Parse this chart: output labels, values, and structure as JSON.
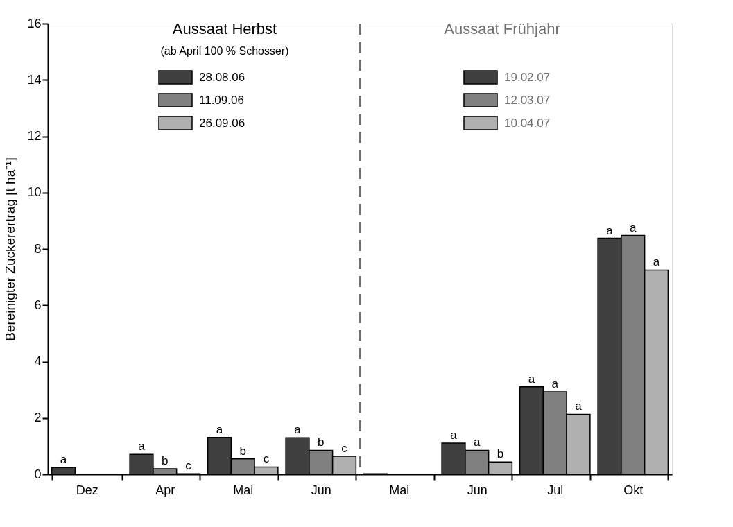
{
  "chart_data": {
    "type": "bar",
    "ylabel": "Bereinigter Zuckerertrag [t ha⁻¹]",
    "categories": [
      "Dez",
      "Apr",
      "Mai",
      "Jun",
      "Mai",
      "Jun",
      "Jul",
      "Okt"
    ],
    "series": [
      {
        "name": "28.08.06",
        "color": "#404040",
        "values": [
          0.24,
          0.71,
          1.31,
          1.3,
          null,
          null,
          null,
          null
        ],
        "value_labels": [
          "a",
          "a",
          "a",
          "a",
          null,
          null,
          null,
          null
        ]
      },
      {
        "name": "11.09.06",
        "color": "#808080",
        "values": [
          null,
          0.2,
          0.55,
          0.85,
          null,
          null,
          null,
          null
        ],
        "value_labels": [
          null,
          "b",
          "b",
          "b",
          null,
          null,
          null,
          null
        ]
      },
      {
        "name": "26.09.06",
        "color": "#b0b0b0",
        "values": [
          null,
          0.02,
          0.26,
          0.64,
          null,
          null,
          null,
          null
        ],
        "value_labels": [
          null,
          "c",
          "c",
          "c",
          null,
          null,
          null,
          null
        ]
      },
      {
        "name": "19.02.07",
        "color": "#404040",
        "values": [
          null,
          null,
          null,
          null,
          0.02,
          1.11,
          3.11,
          8.38
        ],
        "value_labels": [
          null,
          null,
          null,
          null,
          null,
          "a",
          "a",
          "a"
        ]
      },
      {
        "name": "12.03.07",
        "color": "#808080",
        "values": [
          null,
          null,
          null,
          null,
          null,
          0.85,
          2.93,
          8.48
        ],
        "value_labels": [
          null,
          null,
          null,
          null,
          null,
          "a",
          "a",
          "a"
        ]
      },
      {
        "name": "10.04.07",
        "color": "#b0b0b0",
        "values": [
          null,
          null,
          null,
          null,
          null,
          0.44,
          2.13,
          7.25
        ],
        "value_labels": [
          null,
          null,
          null,
          null,
          null,
          "b",
          "a",
          "a"
        ]
      }
    ],
    "ylim": [
      0,
      16
    ],
    "yticks": [
      0,
      2,
      4,
      6,
      8,
      10,
      12,
      14,
      16
    ],
    "grid": false,
    "legend": "top",
    "annotations": [
      "Aussaat Herbst",
      "(ab April 100 % Schosser)",
      "Aussaat Frühjahr"
    ]
  }
}
